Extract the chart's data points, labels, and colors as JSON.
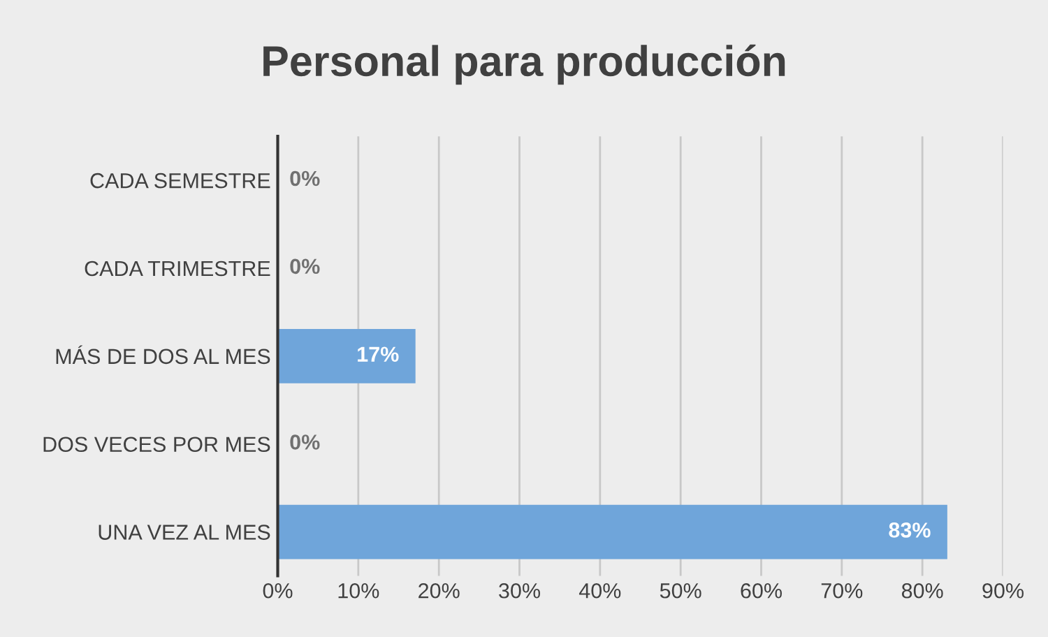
{
  "chart_data": {
    "type": "bar",
    "orientation": "horizontal",
    "title": "Personal para producción",
    "categories": [
      "CADA SEMESTRE",
      "CADA TRIMESTRE",
      "MÁS DE DOS AL MES",
      "DOS VECES POR MES",
      "UNA VEZ AL MES"
    ],
    "values": [
      0,
      0,
      17,
      0,
      83
    ],
    "color": "#6fa5da",
    "value_labels": [
      "0%",
      "0%",
      "17%",
      "0%",
      "83%"
    ],
    "xlim": [
      0,
      90
    ],
    "xticks": [
      {
        "value": 0,
        "label": "0%"
      },
      {
        "value": 10,
        "label": "10%"
      },
      {
        "value": 20,
        "label": "20%"
      },
      {
        "value": 30,
        "label": "30%"
      },
      {
        "value": 40,
        "label": "40%"
      },
      {
        "value": 50,
        "label": "50%"
      },
      {
        "value": 60,
        "label": "60%"
      },
      {
        "value": 70,
        "label": "70%"
      },
      {
        "value": 80,
        "label": "80%"
      },
      {
        "value": 90,
        "label": "90%"
      }
    ],
    "grid": "x",
    "legend": false
  }
}
